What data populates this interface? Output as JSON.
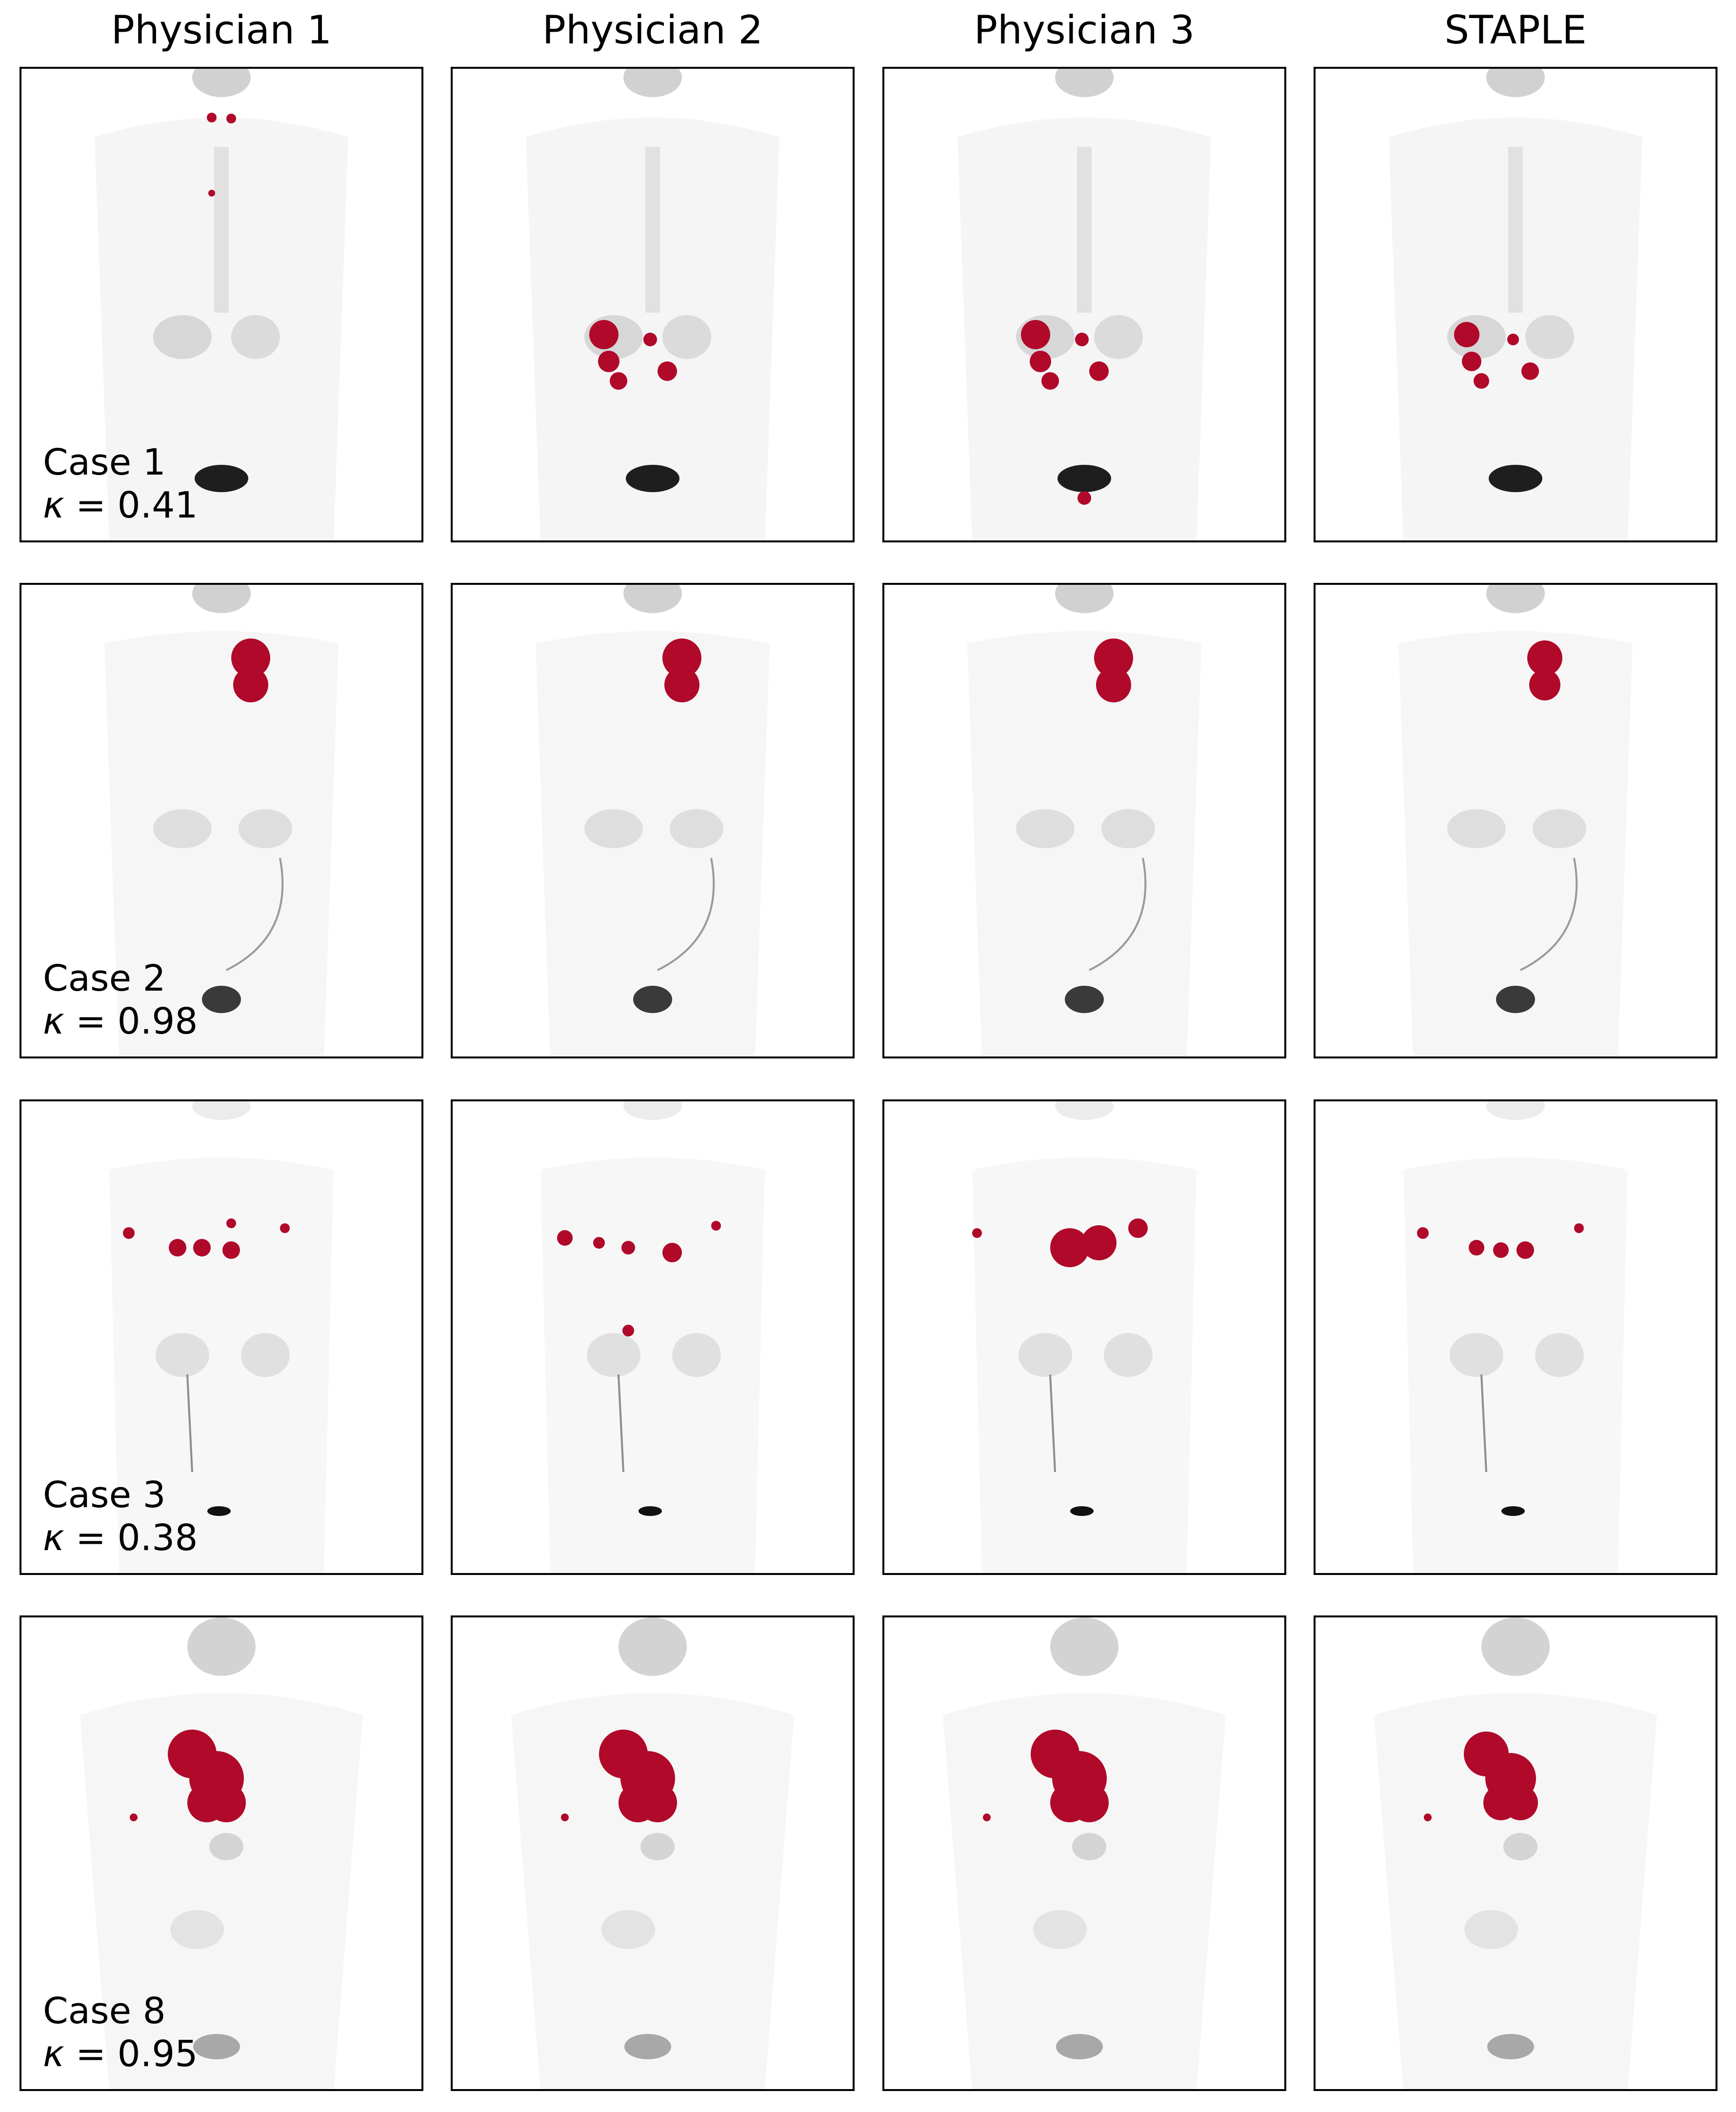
{
  "columns": [
    "Physician 1",
    "Physician 2",
    "Physician 3",
    "STAPLE"
  ],
  "cases": [
    {
      "name": "Case 1",
      "kappa_symbol": "κ",
      "kappa_text": " = 0.41"
    },
    {
      "name": "Case 2",
      "kappa_symbol": "κ",
      "kappa_text": " = 0.98"
    },
    {
      "name": "Case 3",
      "kappa_symbol": "κ",
      "kappa_text": " = 0.38"
    },
    {
      "name": "Case 8",
      "kappa_symbol": "κ",
      "kappa_text": " = 0.95"
    }
  ],
  "colors": {
    "segmentation": "#b0092a",
    "background": "#ffffff",
    "frame": "#000000",
    "tissue": "#ececec",
    "tissue_dark": "#bdbdbd",
    "bladder": "#1e1e1e"
  }
}
